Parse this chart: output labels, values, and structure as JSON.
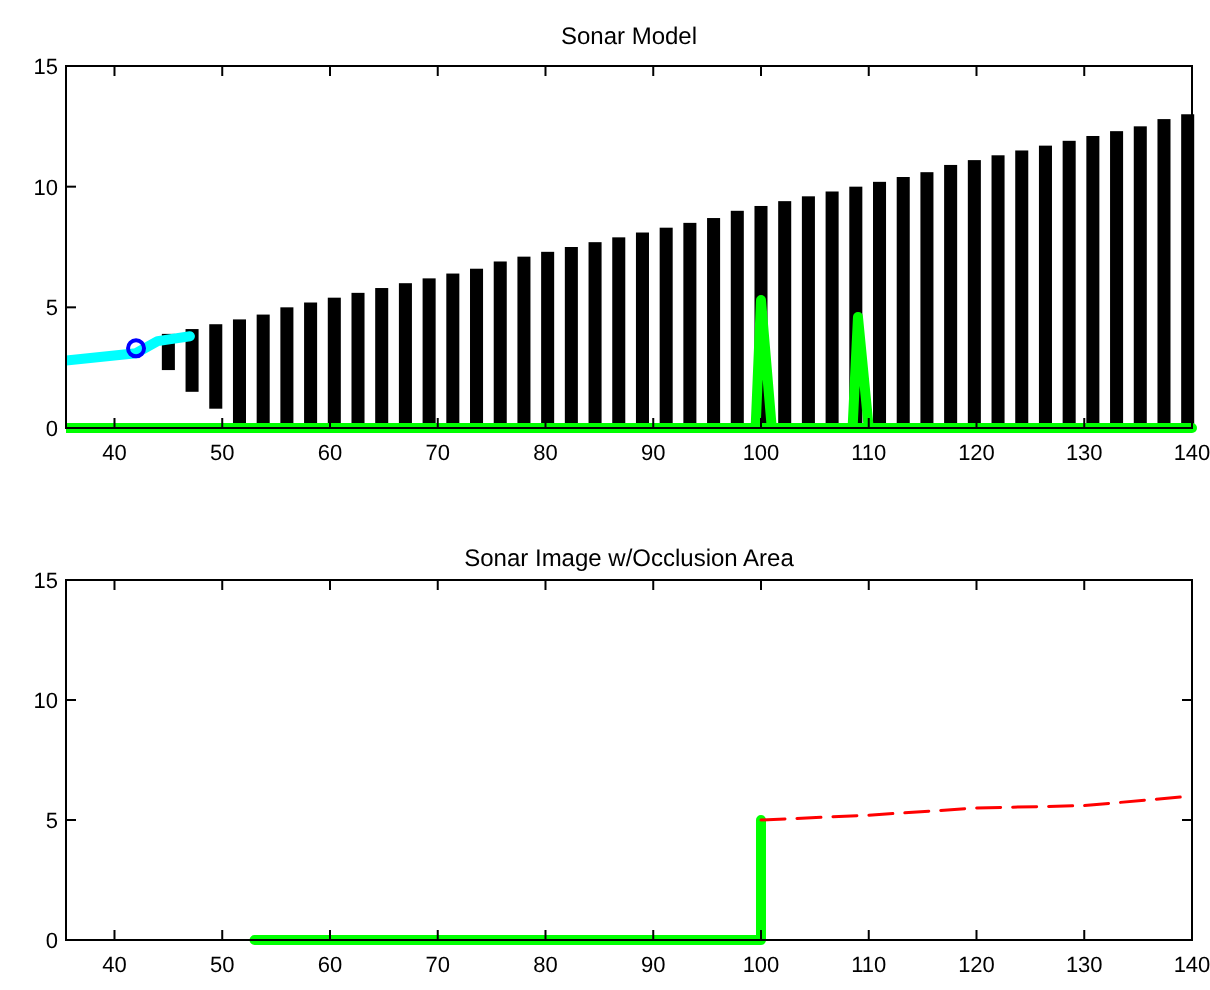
{
  "chart_data": [
    {
      "type": "bar",
      "title": "Sonar Model",
      "xlim": [
        35.5,
        140
      ],
      "xticks": [
        40,
        50,
        60,
        70,
        80,
        90,
        100,
        110,
        120,
        130,
        140
      ],
      "ylim": [
        0,
        15
      ],
      "yticks": [
        0,
        5,
        10,
        15
      ],
      "grid": false,
      "series": [
        {
          "color": "#000000",
          "x": [
            45,
            47.2,
            49.4,
            51.6,
            53.8,
            56,
            58.2,
            60.4,
            62.6,
            64.8,
            67,
            69.2,
            71.4,
            73.6,
            75.8,
            78,
            80.2,
            82.4,
            84.6,
            86.8,
            89,
            91.2,
            93.4,
            95.6,
            97.8,
            100,
            102.2,
            104.4,
            106.6,
            108.8,
            111,
            113.2,
            115.4,
            117.6,
            119.8,
            122,
            124.2,
            126.4,
            128.6,
            130.8,
            133,
            135.2,
            137.4,
            139.6
          ],
          "base": [
            2.4,
            1.5,
            0.8,
            0.2,
            0,
            0,
            0,
            0,
            0,
            0,
            0,
            0,
            0,
            0,
            0,
            0,
            0,
            0,
            0,
            0,
            0,
            0,
            0,
            0,
            0,
            0,
            0,
            0,
            0,
            0,
            0,
            0,
            0,
            0,
            0,
            0,
            0,
            0,
            0,
            0,
            0,
            0,
            0,
            0
          ],
          "values": [
            1.5,
            2.6,
            3.5,
            4.3,
            4.7,
            5.0,
            5.2,
            5.4,
            5.6,
            5.8,
            6.0,
            6.2,
            6.4,
            6.6,
            6.9,
            7.1,
            7.3,
            7.5,
            7.7,
            7.9,
            8.1,
            8.3,
            8.5,
            8.7,
            9.0,
            9.2,
            9.4,
            9.6,
            9.8,
            10.0,
            10.2,
            10.4,
            10.6,
            10.9,
            11.1,
            11.3,
            11.5,
            11.7,
            11.9,
            12.1,
            12.3,
            12.5,
            12.8,
            13.0
          ]
        },
        {
          "type": "line",
          "color": "#00ff00",
          "x": [
            35.5,
            140
          ],
          "values": [
            0,
            0
          ]
        },
        {
          "type": "line",
          "color": "#00ffff",
          "x": [
            35.5,
            42,
            44,
            47
          ],
          "values": [
            2.8,
            3.1,
            3.6,
            3.8
          ]
        },
        {
          "type": "line",
          "color": "#00ff00",
          "x": [
            99.5,
            100,
            101
          ],
          "values": [
            0,
            5.3,
            0
          ]
        },
        {
          "type": "line",
          "color": "#00ff00",
          "x": [
            108.5,
            109,
            110
          ],
          "values": [
            0,
            4.6,
            0
          ]
        },
        {
          "type": "scatter",
          "color": "#0000ff",
          "marker": "circle",
          "x": [
            42
          ],
          "values": [
            3.3
          ]
        }
      ]
    },
    {
      "type": "line",
      "title": "Sonar Image w/Occlusion Area",
      "xlim": [
        35.5,
        140
      ],
      "xticks": [
        40,
        50,
        60,
        70,
        80,
        90,
        100,
        110,
        120,
        130,
        140
      ],
      "ylim": [
        0,
        15
      ],
      "yticks": [
        0,
        5,
        10,
        15
      ],
      "grid": false,
      "series": [
        {
          "color": "#00ff00",
          "line_style": "solid",
          "x": [
            53,
            100,
            100
          ],
          "values": [
            0,
            0,
            5
          ]
        },
        {
          "color": "#ff0000",
          "line_style": "dashed",
          "x": [
            100,
            110,
            120,
            130,
            140
          ],
          "values": [
            5,
            5.2,
            5.5,
            5.6,
            6
          ]
        }
      ]
    }
  ]
}
